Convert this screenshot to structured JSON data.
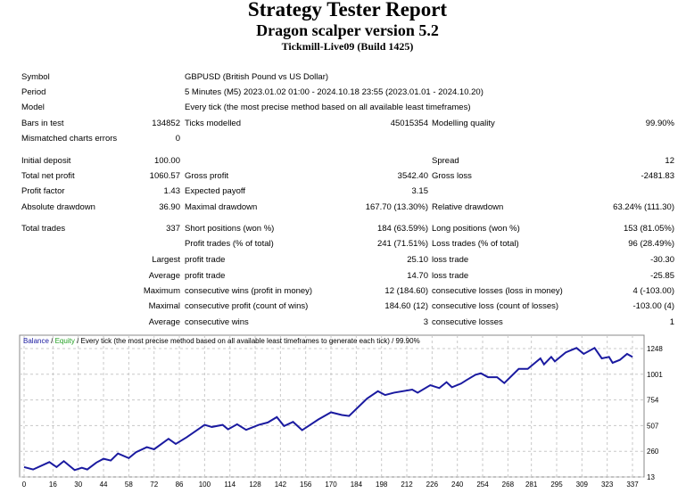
{
  "header": {
    "title": "Strategy Tester Report",
    "subtitle": "Dragon scalper version 5.2",
    "server": "Tickmill-Live09 (Build 1425)"
  },
  "rows": [
    {
      "l1": "Symbol",
      "l2": "GBPUSD (British Pound vs US Dollar)"
    },
    {
      "l1": "Period",
      "l2": "5 Minutes (M5) 2023.01.02 01:00 - 2024.10.18 23:55 (2023.01.01 - 2024.10.20)"
    },
    {
      "l1": "Model",
      "l2": "Every tick (the most precise method based on all available least timeframes)"
    },
    {
      "l1": "Bars in test",
      "v1": "134852",
      "l2": "Ticks modelled",
      "v2": "45015354",
      "l3": "Modelling quality",
      "v3": "99.90%"
    },
    {
      "l1": "Mismatched charts errors",
      "v1": "0"
    },
    {
      "l1": "Initial deposit",
      "v1": "100.00",
      "l3": "Spread",
      "v3": "12"
    },
    {
      "l1": "Total net profit",
      "v1": "1060.57",
      "l2": "Gross profit",
      "v2": "3542.40",
      "l3": "Gross loss",
      "v3": "-2481.83"
    },
    {
      "l1": "Profit factor",
      "v1": "1.43",
      "l2": "Expected payoff",
      "v2": "3.15"
    },
    {
      "l1": "Absolute drawdown",
      "v1": "36.90",
      "l2": "Maximal drawdown",
      "v2": "167.70 (13.30%)",
      "l3": "Relative drawdown",
      "v3": "63.24% (111.30)"
    },
    {
      "l1": "Total trades",
      "v1": "337",
      "l2": "Short positions (won %)",
      "v2": "184 (63.59%)",
      "l3": "Long positions (won %)",
      "v3": "153 (81.05%)"
    },
    {
      "l2": "Profit trades (% of total)",
      "v2": "241 (71.51%)",
      "l3": "Loss trades (% of total)",
      "v3": "96 (28.49%)"
    },
    {
      "v1": "Largest",
      "l2": "profit trade",
      "v2": "25.10",
      "l3": "loss trade",
      "v3": "-30.30"
    },
    {
      "v1": "Average",
      "l2": "profit trade",
      "v2": "14.70",
      "l3": "loss trade",
      "v3": "-25.85"
    },
    {
      "v1": "Maximum",
      "l2": "consecutive wins (profit in money)",
      "v2": "12 (184.60)",
      "l3": "consecutive losses (loss in money)",
      "v3": "4 (-103.00)"
    },
    {
      "v1": "Maximal",
      "l2": "consecutive profit (count of wins)",
      "v2": "184.60 (12)",
      "l3": "consecutive loss (count of losses)",
      "v3": "-103.00 (4)"
    },
    {
      "v1": "Average",
      "l2": "consecutive wins",
      "v2": "3",
      "l3": "consecutive losses",
      "v3": "1"
    }
  ],
  "chart_data": {
    "type": "line",
    "legend": {
      "balance": "Balance",
      "sep1": " / ",
      "equity": "Equity",
      "rest": " / Every tick (the most precise method based on all available least timeframes to generate each tick) / 99.90%"
    },
    "colors": {
      "balance": "#1a1aa0",
      "equity": "#22a022",
      "grid": "#c8c8c8"
    },
    "xlim": [
      0,
      337
    ],
    "ylim": [
      13,
      1248
    ],
    "xticks": [
      0,
      16,
      30,
      44,
      58,
      72,
      86,
      100,
      114,
      128,
      142,
      156,
      170,
      184,
      198,
      212,
      226,
      240,
      254,
      268,
      281,
      295,
      309,
      323,
      337
    ],
    "yticks": [
      13,
      260,
      507,
      754,
      1001,
      1248
    ],
    "series": [
      {
        "name": "Balance",
        "x": [
          0,
          5,
          14,
          18,
          22,
          28,
          32,
          35,
          40,
          44,
          48,
          52,
          58,
          62,
          68,
          72,
          80,
          84,
          90,
          100,
          104,
          110,
          113,
          118,
          123,
          130,
          135,
          140,
          144,
          149,
          154,
          163,
          170,
          176,
          180,
          190,
          196,
          200,
          205,
          215,
          218,
          225,
          230,
          234,
          237,
          242,
          245,
          250,
          253,
          257,
          262,
          266,
          274,
          279,
          286,
          288,
          292,
          294,
          300,
          306,
          310,
          316,
          320,
          324,
          326,
          330,
          334,
          337
        ],
        "y": [
          108,
          85,
          156,
          108,
          165,
          79,
          102,
          85,
          151,
          188,
          171,
          239,
          194,
          251,
          300,
          279,
          380,
          331,
          394,
          514,
          494,
          514,
          471,
          520,
          466,
          514,
          537,
          589,
          503,
          543,
          463,
          566,
          635,
          609,
          600,
          767,
          838,
          801,
          824,
          853,
          824,
          896,
          868,
          925,
          876,
          911,
          944,
          996,
          1010,
          973,
          973,
          916,
          1053,
          1053,
          1154,
          1096,
          1168,
          1125,
          1211,
          1254,
          1197,
          1254,
          1154,
          1168,
          1111,
          1139,
          1197,
          1168
        ]
      }
    ]
  }
}
